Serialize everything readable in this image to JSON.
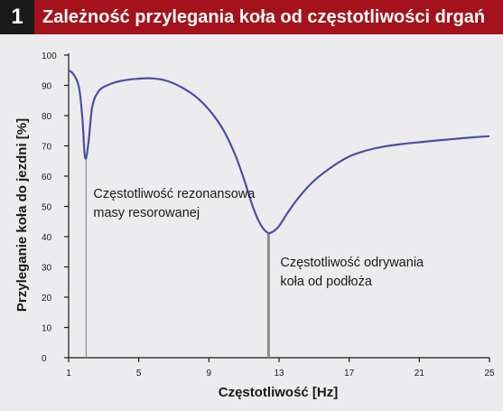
{
  "figure": {
    "number": "1",
    "title": "Zależność przylegania koła od częstotliwości drgań"
  },
  "colors": {
    "header": "#a4121b",
    "badge": "#1a1a1a",
    "background": "#ececee",
    "curve": "#4b4ea5",
    "marker": "#8c8c8c",
    "text": "#1a1a1a"
  },
  "chart_data": {
    "type": "line",
    "title": "",
    "xlabel": "Częstotliwość [Hz]",
    "ylabel": "Przyleganie koła do jezdni [%]",
    "xlim": [
      1,
      25
    ],
    "ylim": [
      0,
      100
    ],
    "x_ticks": [
      1,
      5,
      9,
      13,
      17,
      21,
      25
    ],
    "y_ticks": [
      0,
      10,
      20,
      30,
      40,
      50,
      60,
      70,
      80,
      90,
      100
    ],
    "grid": false,
    "series": [
      {
        "points": [
          [
            1.0,
            95
          ],
          [
            1.3,
            93.5
          ],
          [
            1.6,
            89
          ],
          [
            1.8,
            78
          ],
          [
            1.9,
            68
          ],
          [
            2.0,
            66
          ],
          [
            2.15,
            72
          ],
          [
            2.35,
            83
          ],
          [
            2.7,
            88
          ],
          [
            3.2,
            90
          ],
          [
            4.0,
            91.5
          ],
          [
            5.0,
            92.2
          ],
          [
            5.8,
            92.3
          ],
          [
            6.6,
            91.5
          ],
          [
            7.4,
            89.5
          ],
          [
            8.2,
            86.5
          ],
          [
            9.0,
            82
          ],
          [
            9.8,
            75.5
          ],
          [
            10.5,
            67
          ],
          [
            11.0,
            59
          ],
          [
            11.5,
            50
          ],
          [
            11.9,
            44.5
          ],
          [
            12.3,
            41.5
          ],
          [
            12.6,
            41.5
          ],
          [
            13.0,
            43.5
          ],
          [
            13.5,
            48
          ],
          [
            14.2,
            53.5
          ],
          [
            15.0,
            58.5
          ],
          [
            16.0,
            63
          ],
          [
            17.0,
            66.5
          ],
          [
            18.0,
            68.5
          ],
          [
            19.0,
            69.8
          ],
          [
            20.0,
            70.6
          ],
          [
            21.0,
            71.2
          ],
          [
            22.0,
            71.8
          ],
          [
            23.0,
            72.3
          ],
          [
            24.0,
            72.8
          ],
          [
            25.0,
            73.2
          ]
        ]
      }
    ],
    "annotations": [
      {
        "x": 2.0,
        "y": 66,
        "lines": [
          "Częstotliwość rezonansowa",
          "masy resorowanej"
        ]
      },
      {
        "x": 12.4,
        "y": 41.5,
        "lines": [
          "Częstotliwość odrywania",
          "koła od podłoża"
        ]
      }
    ]
  }
}
